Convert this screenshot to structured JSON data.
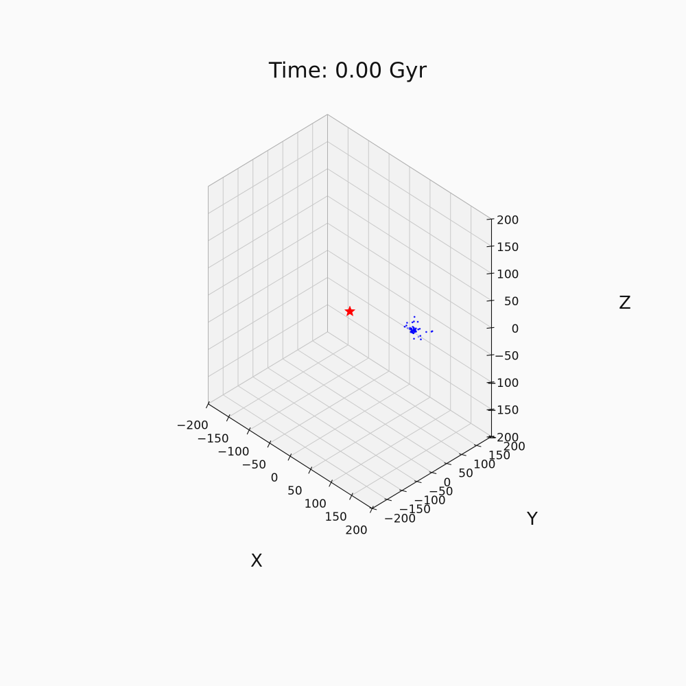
{
  "chart_data": {
    "type": "scatter3d",
    "title": "Time: 0.00 Gyr",
    "xlabel": "X",
    "ylabel": "Y",
    "zlabel": "Z",
    "xlim": [
      -200,
      200
    ],
    "ylim": [
      -200,
      200
    ],
    "zlim": [
      -200,
      200
    ],
    "ticks": [
      -200,
      -150,
      -100,
      -50,
      0,
      50,
      100,
      150,
      200
    ],
    "tick_labels": [
      "−200",
      "−150",
      "−100",
      "−50",
      "0",
      "50",
      "100",
      "150",
      "200"
    ],
    "grid": true,
    "colors": {
      "particles": "#0000ff",
      "marker": "#ff0000"
    },
    "star_marker": {
      "x": 0,
      "y": 0,
      "z": 0,
      "shape": "star"
    },
    "particle_cluster": {
      "shape": "dot",
      "center": {
        "x": 64,
        "y": 125,
        "z": -45
      },
      "points": [
        [
          64,
          125,
          -45
        ],
        [
          60,
          124,
          -44
        ],
        [
          66,
          127,
          -47
        ],
        [
          62,
          121,
          -43
        ],
        [
          67,
          126,
          -42
        ],
        [
          63,
          128,
          -48
        ],
        [
          59,
          126,
          -46
        ],
        [
          65,
          122,
          -46
        ],
        [
          61,
          127,
          -41
        ],
        [
          68,
          124,
          -44
        ],
        [
          63,
          123,
          -49
        ],
        [
          66,
          129,
          -45
        ],
        [
          58,
          122,
          -45
        ],
        [
          64,
          120,
          -47
        ],
        [
          62,
          129,
          -43
        ],
        [
          67,
          121,
          -48
        ],
        [
          60,
          128,
          -49
        ],
        [
          65,
          125,
          -40
        ],
        [
          61,
          123,
          -47
        ],
        [
          69,
          127,
          -46
        ],
        [
          64,
          126,
          -43
        ],
        [
          57,
          125,
          -44
        ],
        [
          66,
          123,
          -43
        ],
        [
          63,
          130,
          -46
        ],
        [
          62,
          124,
          -50
        ],
        [
          68,
          128,
          -41
        ],
        [
          59,
          120,
          -42
        ],
        [
          65,
          128,
          -49
        ],
        [
          60,
          122,
          -48
        ],
        [
          67,
          129,
          -47
        ],
        [
          52,
          118,
          -40
        ],
        [
          76,
          132,
          -52
        ],
        [
          55,
          134,
          -38
        ],
        [
          72,
          116,
          -54
        ],
        [
          70,
          138,
          -44
        ],
        [
          48,
          128,
          -50
        ],
        [
          78,
          122,
          -36
        ],
        [
          58,
          112,
          -30
        ],
        [
          75,
          135,
          -60
        ],
        [
          54,
          130,
          -55
        ],
        [
          86,
          138,
          -42
        ],
        [
          50,
          115,
          -42
        ],
        [
          80,
          120,
          -48
        ],
        [
          71,
          130,
          -28
        ],
        [
          56,
          136,
          -58
        ],
        [
          96,
          142,
          -38
        ],
        [
          97,
          143,
          -37
        ],
        [
          69,
          120,
          -25
        ],
        [
          66,
          126,
          -20
        ]
      ]
    }
  }
}
